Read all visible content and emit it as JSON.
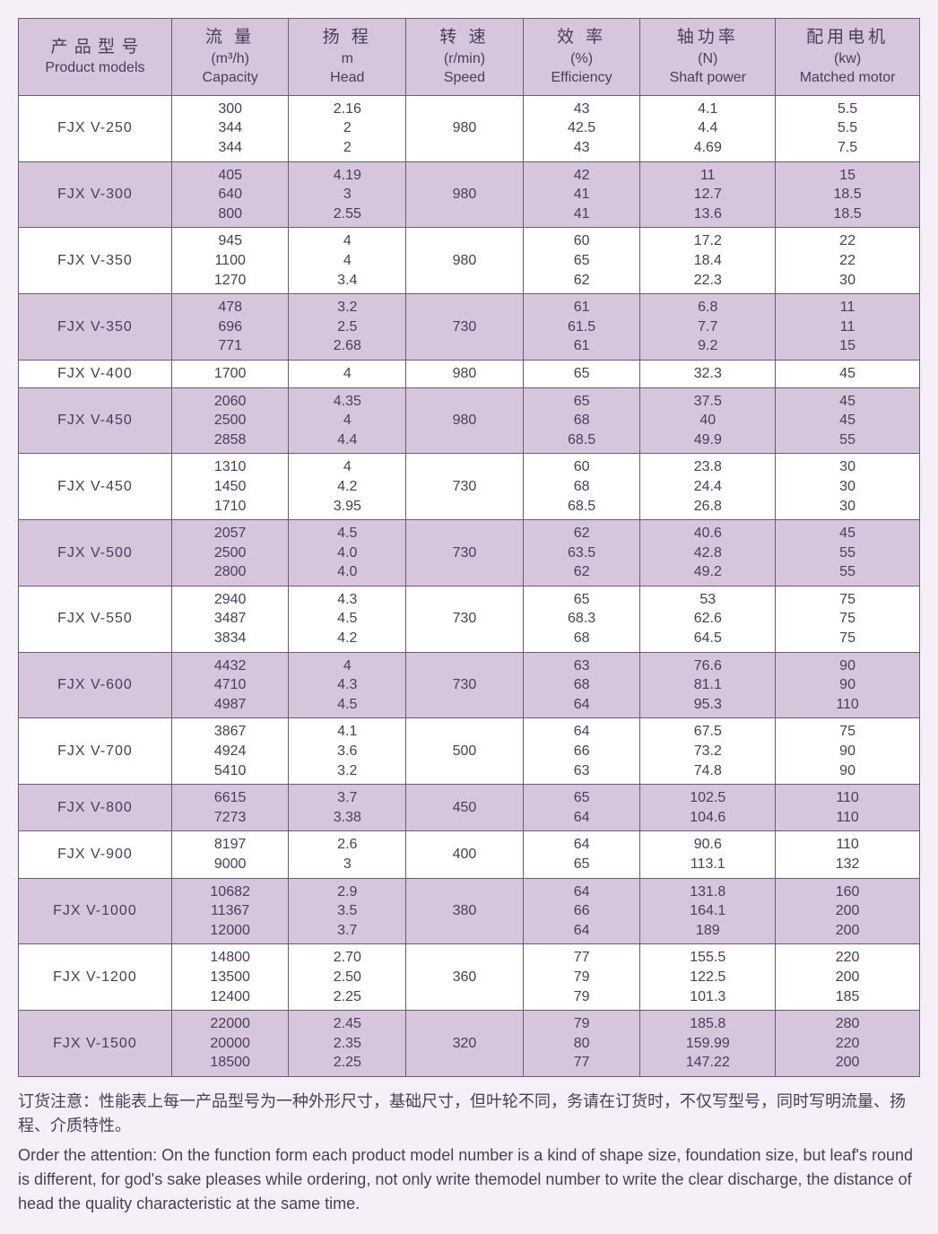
{
  "colors": {
    "page_bg": "#f5f0f7",
    "shaded_row": "#d6c5db",
    "plain_row": "#ffffff",
    "border": "#6b5a7a",
    "text": "#4a3d5c"
  },
  "columns": [
    {
      "cn": "产 品 型 号",
      "unit": "",
      "en": "Product models"
    },
    {
      "cn": "流 量",
      "unit": "(m³/h)",
      "en": "Capacity"
    },
    {
      "cn": "扬 程",
      "unit": "m",
      "en": "Head"
    },
    {
      "cn": "转 速",
      "unit": "(r/min)",
      "en": "Speed"
    },
    {
      "cn": "效 率",
      "unit": "(%)",
      "en": "Efficiency"
    },
    {
      "cn": "轴功率",
      "unit": "(N)",
      "en": "Shaft power"
    },
    {
      "cn": "配用电机",
      "unit": "(kw)",
      "en": "Matched motor"
    }
  ],
  "rows": [
    {
      "shaded": false,
      "model": "FJX V-250",
      "capacity": [
        "300",
        "344",
        "344"
      ],
      "head": [
        "2.16",
        "2",
        "2"
      ],
      "speed": "980",
      "eff": [
        "43",
        "42.5",
        "43"
      ],
      "shaft": [
        "4.1",
        "4.4",
        "4.69"
      ],
      "motor": [
        "5.5",
        "5.5",
        "7.5"
      ]
    },
    {
      "shaded": true,
      "model": "FJX V-300",
      "capacity": [
        "405",
        "640",
        "800"
      ],
      "head": [
        "4.19",
        "3",
        "2.55"
      ],
      "speed": "980",
      "eff": [
        "42",
        "41",
        "41"
      ],
      "shaft": [
        "11",
        "12.7",
        "13.6"
      ],
      "motor": [
        "15",
        "18.5",
        "18.5"
      ]
    },
    {
      "shaded": false,
      "model": "FJX V-350",
      "capacity": [
        "945",
        "1100",
        "1270"
      ],
      "head": [
        "4",
        "4",
        "3.4"
      ],
      "speed": "980",
      "eff": [
        "60",
        "65",
        "62"
      ],
      "shaft": [
        "17.2",
        "18.4",
        "22.3"
      ],
      "motor": [
        "22",
        "22",
        "30"
      ]
    },
    {
      "shaded": true,
      "model": "FJX V-350",
      "capacity": [
        "478",
        "696",
        "771"
      ],
      "head": [
        "3.2",
        "2.5",
        "2.68"
      ],
      "speed": "730",
      "eff": [
        "61",
        "61.5",
        "61"
      ],
      "shaft": [
        "6.8",
        "7.7",
        "9.2"
      ],
      "motor": [
        "11",
        "11",
        "15"
      ]
    },
    {
      "shaded": false,
      "model": "FJX V-400",
      "capacity": [
        "1700"
      ],
      "head": [
        "4"
      ],
      "speed": "980",
      "eff": [
        "65"
      ],
      "shaft": [
        "32.3"
      ],
      "motor": [
        "45"
      ]
    },
    {
      "shaded": true,
      "model": "FJX V-450",
      "capacity": [
        "2060",
        "2500",
        "2858"
      ],
      "head": [
        "4.35",
        "4",
        "4.4"
      ],
      "speed": "980",
      "eff": [
        "65",
        "68",
        "68.5"
      ],
      "shaft": [
        "37.5",
        "40",
        "49.9"
      ],
      "motor": [
        "45",
        "45",
        "55"
      ]
    },
    {
      "shaded": false,
      "model": "FJX V-450",
      "capacity": [
        "1310",
        "1450",
        "1710"
      ],
      "head": [
        "4",
        "4.2",
        "3.95"
      ],
      "speed": "730",
      "eff": [
        "60",
        "68",
        "68.5"
      ],
      "shaft": [
        "23.8",
        "24.4",
        "26.8"
      ],
      "motor": [
        "30",
        "30",
        "30"
      ]
    },
    {
      "shaded": true,
      "model": "FJX V-500",
      "capacity": [
        "2057",
        "2500",
        "2800"
      ],
      "head": [
        "4.5",
        "4.0",
        "4.0"
      ],
      "speed": "730",
      "eff": [
        "62",
        "63.5",
        "62"
      ],
      "shaft": [
        "40.6",
        "42.8",
        "49.2"
      ],
      "motor": [
        "45",
        "55",
        "55"
      ]
    },
    {
      "shaded": false,
      "model": "FJX V-550",
      "capacity": [
        "2940",
        "3487",
        "3834"
      ],
      "head": [
        "4.3",
        "4.5",
        "4.2"
      ],
      "speed": "730",
      "eff": [
        "65",
        "68.3",
        "68"
      ],
      "shaft": [
        "53",
        "62.6",
        "64.5"
      ],
      "motor": [
        "75",
        "75",
        "75"
      ]
    },
    {
      "shaded": true,
      "model": "FJX V-600",
      "capacity": [
        "4432",
        "4710",
        "4987"
      ],
      "head": [
        "4",
        "4.3",
        "4.5"
      ],
      "speed": "730",
      "eff": [
        "63",
        "68",
        "64"
      ],
      "shaft": [
        "76.6",
        "81.1",
        "95.3"
      ],
      "motor": [
        "90",
        "90",
        "110"
      ]
    },
    {
      "shaded": false,
      "model": "FJX V-700",
      "capacity": [
        "3867",
        "4924",
        "5410"
      ],
      "head": [
        "4.1",
        "3.6",
        "3.2"
      ],
      "speed": "500",
      "eff": [
        "64",
        "66",
        "63"
      ],
      "shaft": [
        "67.5",
        "73.2",
        "74.8"
      ],
      "motor": [
        "75",
        "90",
        "90"
      ]
    },
    {
      "shaded": true,
      "model": "FJX V-800",
      "capacity": [
        "6615",
        "7273"
      ],
      "head": [
        "3.7",
        "3.38"
      ],
      "speed": "450",
      "eff": [
        "65",
        "64"
      ],
      "shaft": [
        "102.5",
        "104.6"
      ],
      "motor": [
        "110",
        "110"
      ]
    },
    {
      "shaded": false,
      "model": "FJX V-900",
      "capacity": [
        "8197",
        "9000"
      ],
      "head": [
        "2.6",
        "3"
      ],
      "speed": "400",
      "eff": [
        "64",
        "65"
      ],
      "shaft": [
        "90.6",
        "113.1"
      ],
      "motor": [
        "110",
        "132"
      ]
    },
    {
      "shaded": true,
      "model": "FJX V-1000",
      "capacity": [
        "10682",
        "11367",
        "12000"
      ],
      "head": [
        "2.9",
        "3.5",
        "3.7"
      ],
      "speed": "380",
      "eff": [
        "64",
        "66",
        "64"
      ],
      "shaft": [
        "131.8",
        "164.1",
        "189"
      ],
      "motor": [
        "160",
        "200",
        "200"
      ]
    },
    {
      "shaded": false,
      "model": "FJX V-1200",
      "capacity": [
        "14800",
        "13500",
        "12400"
      ],
      "head": [
        "2.70",
        "2.50",
        "2.25"
      ],
      "speed": "360",
      "eff": [
        "77",
        "79",
        "79"
      ],
      "shaft": [
        "155.5",
        "122.5",
        "101.3"
      ],
      "motor": [
        "220",
        "200",
        "185"
      ]
    },
    {
      "shaded": true,
      "model": "FJX V-1500",
      "capacity": [
        "22000",
        "20000",
        "18500"
      ],
      "head": [
        "2.45",
        "2.35",
        "2.25"
      ],
      "speed": "320",
      "eff": [
        "79",
        "80",
        "77"
      ],
      "shaft": [
        "185.8",
        "159.99",
        "147.22"
      ],
      "motor": [
        "280",
        "220",
        "200"
      ]
    }
  ],
  "footnote": {
    "cn": "订货注意：性能表上每一产品型号为一种外形尺寸，基础尺寸，但叶轮不同，务请在订货时，不仅写型号，同时写明流量、扬程、介质特性。",
    "en": "Order the attention: On the function form each product model number is a kind of shape size, foundation size, but leaf's round is different, for god's sake pleases while ordering, not only write themodel number to write the clear discharge, the distance of head the quality characteristic at the same time."
  },
  "typography": {
    "header_cn_fontsize": 19,
    "header_sub_fontsize": 16,
    "body_fontsize": 16,
    "footnote_fontsize": 18
  }
}
